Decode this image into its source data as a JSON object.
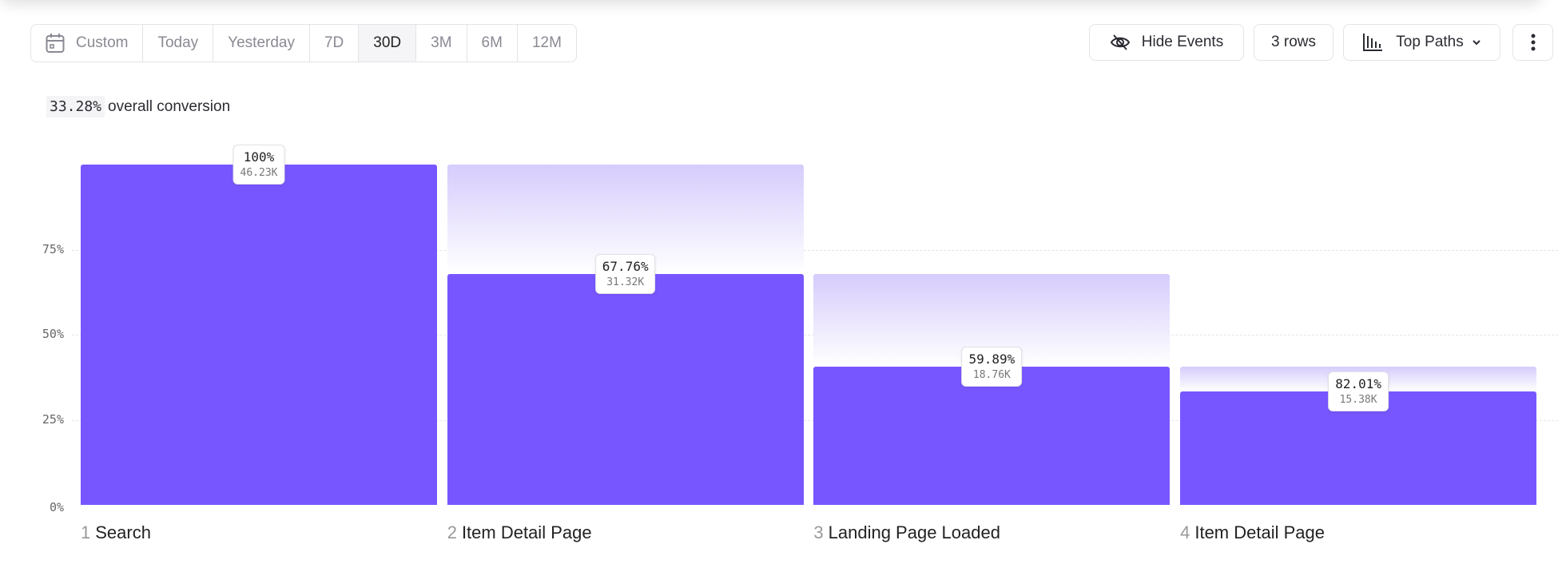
{
  "toolbar": {
    "date_range": {
      "options": [
        "Custom",
        "Today",
        "Yesterday",
        "7D",
        "30D",
        "3M",
        "6M",
        "12M"
      ],
      "selected": "30D"
    },
    "hide_events_label": "Hide Events",
    "rows_label": "3 rows",
    "chart_type_label": "Top Paths"
  },
  "summary": {
    "conversion": "33.28%",
    "conversion_label": "overall conversion"
  },
  "colors": {
    "bar": "#7856ff",
    "ghost": "#d6ccfc"
  },
  "chart_data": {
    "type": "bar",
    "title": "",
    "categories": [
      "Search",
      "Item Detail Page",
      "Landing Page Loaded",
      "Item Detail Page"
    ],
    "step_numbers": [
      "1",
      "2",
      "3",
      "4"
    ],
    "overall_percent": [
      100,
      67.76,
      40.58,
      33.28
    ],
    "step_conversion_labels": [
      "100%",
      "67.76%",
      "59.89%",
      "82.01%"
    ],
    "count_labels": [
      "46.23K",
      "31.32K",
      "18.76K",
      "15.38K"
    ],
    "yticks": [
      "0%",
      "25%",
      "50%",
      "75%"
    ],
    "ylim": [
      0,
      100
    ],
    "grid": true
  }
}
